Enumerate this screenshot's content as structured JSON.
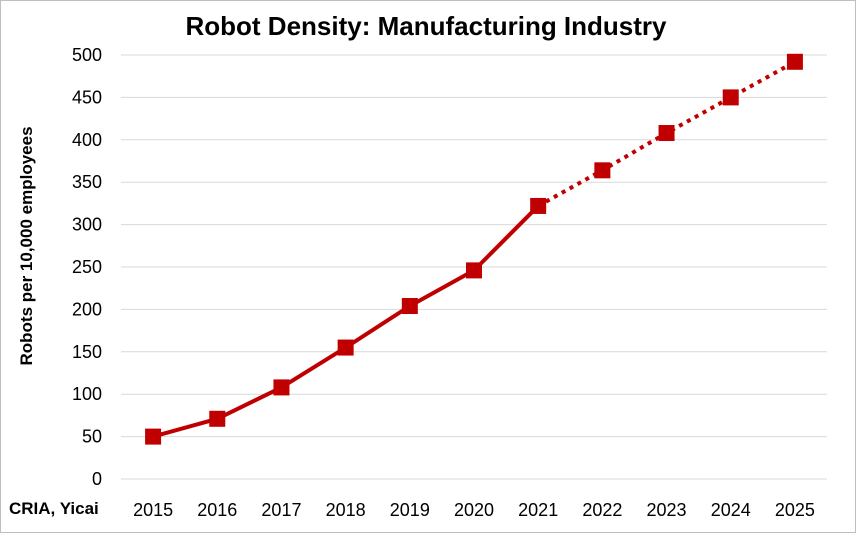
{
  "chart_data": {
    "type": "line",
    "title": "Robot Density: Manufacturing Industry",
    "ylabel": "Robots per 10,000 employees",
    "source": "CRIA, Yicai",
    "ylim": [
      0,
      500
    ],
    "yticks": [
      0,
      50,
      100,
      150,
      200,
      250,
      300,
      350,
      400,
      450,
      500
    ],
    "x": [
      "2015",
      "2016",
      "2017",
      "2018",
      "2019",
      "2020",
      "2021",
      "2022",
      "2023",
      "2024",
      "2025"
    ],
    "series": [
      {
        "values": [
          50,
          71,
          108,
          155,
          204,
          246,
          322,
          364,
          408,
          450,
          492
        ],
        "actual_through": "2021",
        "projected_from": "2021",
        "color": "#c00000",
        "marker": "square"
      }
    ],
    "grid": true
  }
}
